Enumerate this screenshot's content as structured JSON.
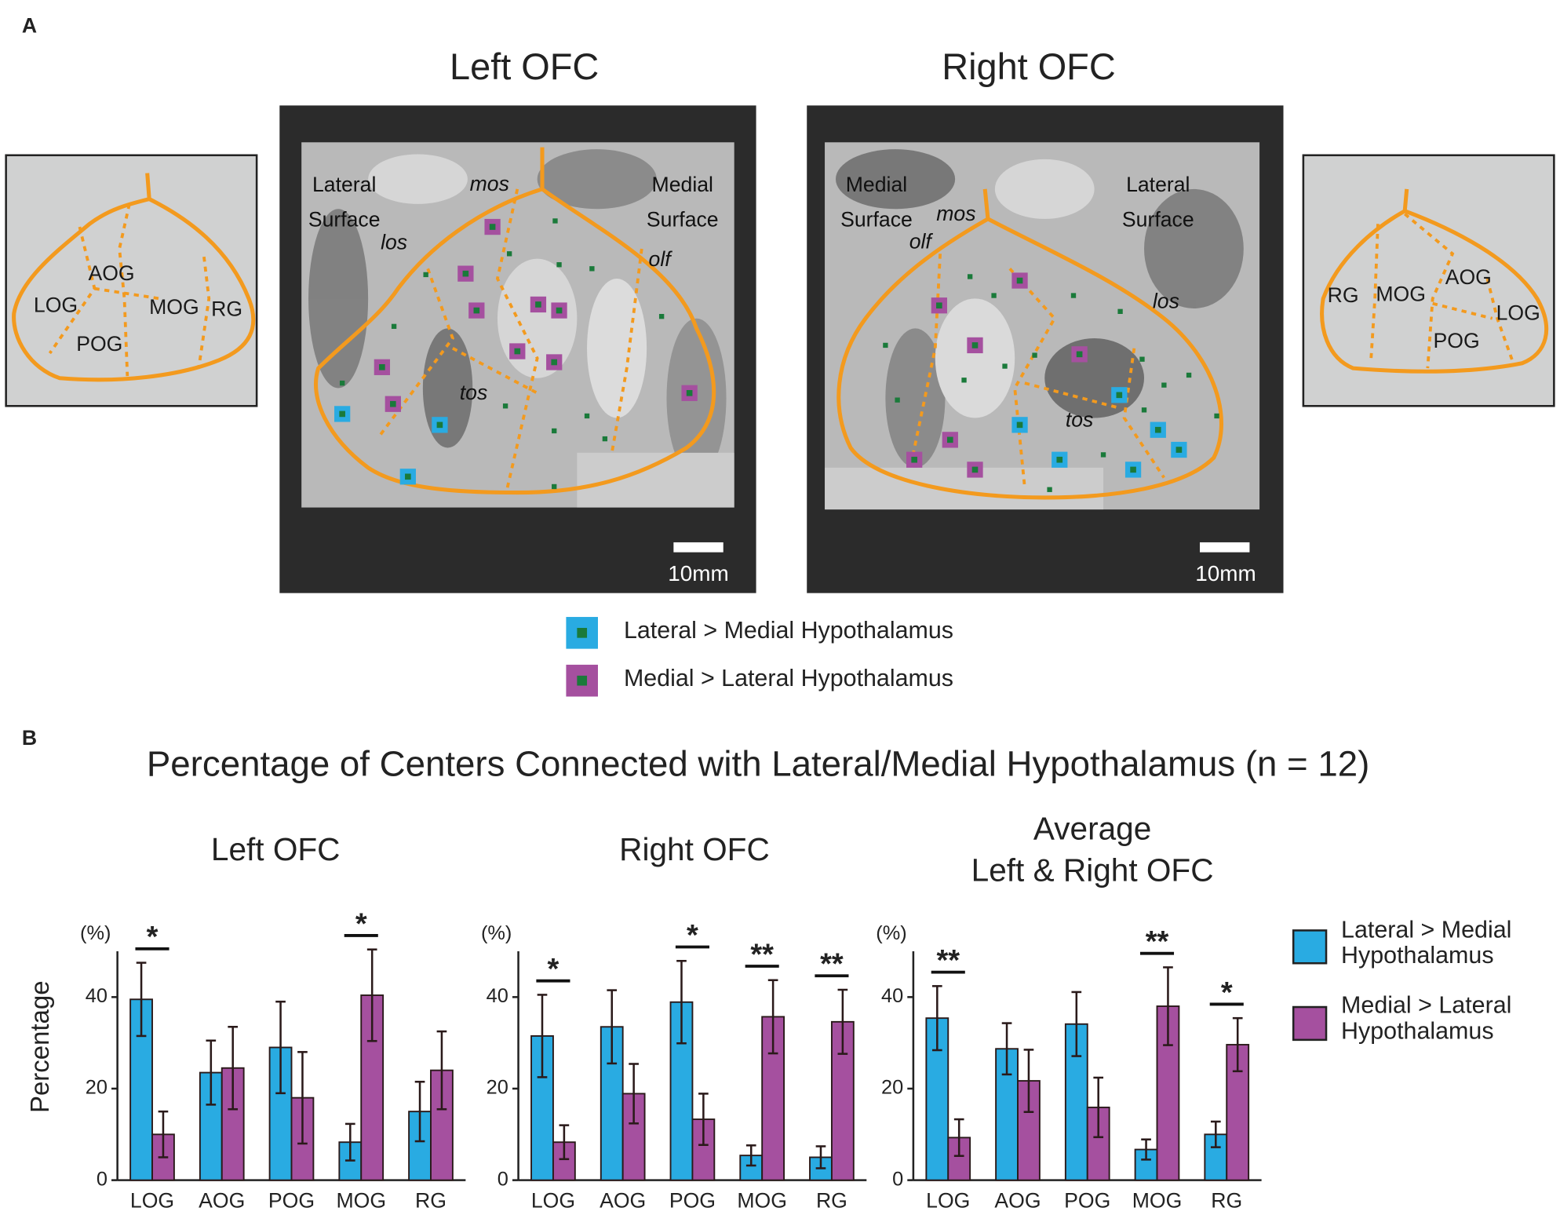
{
  "panel_a": {
    "label": "A",
    "left_title": "Left OFC",
    "right_title": "Right OFC",
    "left_schematic": [
      "AOG",
      "LOG",
      "MOG",
      "RG",
      "POG"
    ],
    "left_map": {
      "lateral": [
        "Lateral",
        "Surface"
      ],
      "medial": [
        "Medial",
        "Surface"
      ],
      "sulci": [
        "mos",
        "los",
        "olf",
        "tos"
      ],
      "scale": "10mm"
    },
    "right_map": {
      "medial": [
        "Medial",
        "Surface"
      ],
      "lateral": [
        "Lateral",
        "Surface"
      ],
      "sulci": [
        "mos",
        "olf",
        "los",
        "tos"
      ],
      "scale": "10mm"
    },
    "right_schematic": [
      "RG",
      "MOG",
      "AOG",
      "LOG",
      "POG"
    ],
    "legend": [
      "Lateral > Medial Hypothalamus",
      "Medial > Lateral Hypothalamus"
    ]
  },
  "panel_b": {
    "label": "B",
    "title": "Percentage of Centers Connected with Lateral/Medial Hypothalamus (n = 12)"
  },
  "chart_data": [
    {
      "type": "bar",
      "title": "Left OFC",
      "y_label": "Percentage",
      "y_unit": "(%)",
      "categories": [
        "LOG",
        "AOG",
        "POG",
        "MOG",
        "RG"
      ],
      "series": [
        {
          "color": "#29abe2",
          "values": [
            39.5,
            23.5,
            29,
            8.3,
            15
          ],
          "errors": [
            8,
            7,
            10,
            4,
            6.5
          ]
        },
        {
          "color": "#a5509f",
          "values": [
            10,
            24.5,
            18,
            40.4,
            24
          ],
          "errors": [
            5,
            9,
            10,
            10,
            8.5
          ]
        }
      ],
      "significance": [
        "*",
        null,
        null,
        "*",
        null
      ],
      "ylim": [
        0,
        50
      ],
      "yticks": [
        0,
        20,
        40
      ]
    },
    {
      "type": "bar",
      "title": "Right OFC",
      "y_unit": "(%)",
      "categories": [
        "LOG",
        "AOG",
        "POG",
        "MOG",
        "RG"
      ],
      "series": [
        {
          "color": "#29abe2",
          "values": [
            31.5,
            33.5,
            38.9,
            5.4,
            5
          ],
          "errors": [
            9,
            8,
            9,
            2.2,
            2.4
          ]
        },
        {
          "color": "#a5509f",
          "values": [
            8.3,
            18.9,
            13.3,
            35.7,
            34.6
          ],
          "errors": [
            3.7,
            6.5,
            5.6,
            8,
            7
          ]
        }
      ],
      "significance": [
        "*",
        null,
        "*",
        "**",
        "**"
      ],
      "ylim": [
        0,
        50
      ],
      "yticks": [
        0,
        20,
        40
      ]
    },
    {
      "type": "bar",
      "title": [
        "Average",
        "Left & Right OFC"
      ],
      "y_unit": "(%)",
      "categories": [
        "LOG",
        "AOG",
        "POG",
        "MOG",
        "RG"
      ],
      "series": [
        {
          "name": "Lateral > Medial Hypothalamus",
          "color": "#29abe2",
          "values": [
            35.4,
            28.7,
            34.1,
            6.7,
            10
          ],
          "errors": [
            7,
            5.6,
            7,
            2.2,
            2.8
          ]
        },
        {
          "name": "Medial > Lateral Hypothalamus",
          "color": "#a5509f",
          "values": [
            9.3,
            21.7,
            15.9,
            38,
            29.6
          ],
          "errors": [
            4,
            6.8,
            6.5,
            8.5,
            5.8
          ]
        }
      ],
      "significance": [
        "**",
        null,
        null,
        "**",
        "*"
      ],
      "ylim": [
        0,
        50
      ],
      "yticks": [
        0,
        20,
        40
      ]
    }
  ]
}
